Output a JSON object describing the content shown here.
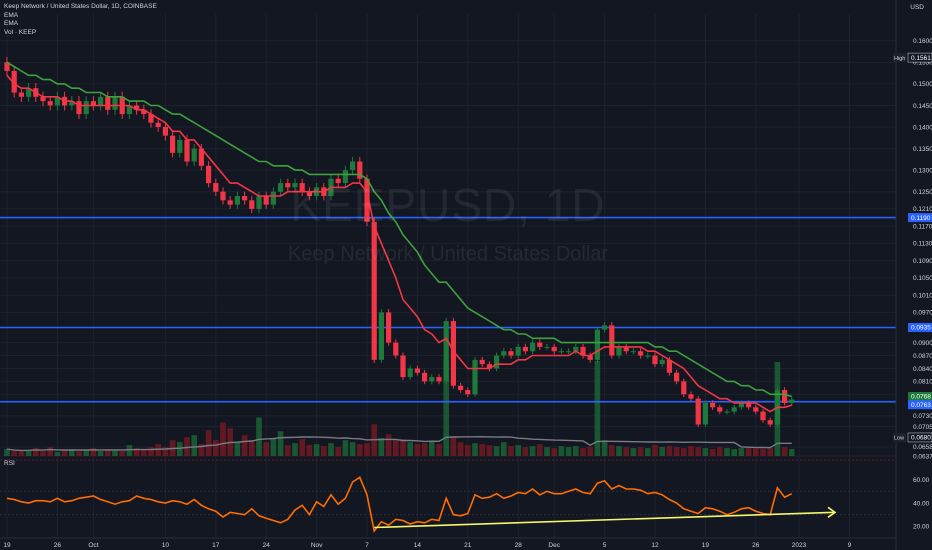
{
  "header": {
    "symbol_line": "Keep Network / United States Dollar, 1D, COINBASE",
    "indicators": [
      "EMA",
      "EMA",
      "Vol · KEEP"
    ],
    "currency": "USD"
  },
  "watermark": {
    "symbol": "KEEPUSD, 1D",
    "name": "Keep Network / United States Dollar"
  },
  "rsi_label": "RSI",
  "colors": {
    "background": "#131722",
    "up": "#26a69a",
    "up_candle": "#1e7a3a",
    "down": "#f23645",
    "ema_fast": "#f23645",
    "ema_slow": "#3ca33c",
    "hline": "#2962ff",
    "rsi": "#ff6d00",
    "trendline": "#f5f56b",
    "vol_ma": "#787b86"
  },
  "chart_data": {
    "type": "candlestick",
    "title": "Keep Network / United States Dollar, 1D, COINBASE",
    "price_axis": {
      "ylim": [
        0.0637,
        0.1625
      ],
      "ticks": [
        "0.1600",
        "0.1550",
        "0.1500",
        "0.1450",
        "0.1400",
        "0.1350",
        "0.1300",
        "0.1250",
        "0.1210",
        "0.1170",
        "0.1130",
        "0.1090",
        "0.1050",
        "0.1010",
        "0.0970",
        "0.0900",
        "0.0870",
        "0.0840",
        "0.0810",
        "0.0780",
        "0.0730",
        "0.0705",
        "0.0658",
        "0.0637"
      ],
      "tick_values": [
        0.16,
        0.155,
        0.15,
        0.145,
        0.14,
        0.135,
        0.13,
        0.125,
        0.121,
        0.117,
        0.113,
        0.109,
        0.105,
        0.101,
        0.097,
        0.09,
        0.087,
        0.084,
        0.081,
        0.078,
        0.073,
        0.0705,
        0.0658,
        0.0637
      ]
    },
    "x_axis": {
      "tick_labels": [
        "19",
        "26",
        "Oct",
        "10",
        "17",
        "24",
        "Nov",
        "7",
        "14",
        "21",
        "28",
        "Dec",
        "5",
        "12",
        "19",
        "26",
        "2023",
        "9"
      ],
      "tick_days": [
        0,
        7,
        12,
        22,
        29,
        36,
        43,
        50,
        57,
        64,
        71,
        76,
        83,
        90,
        97,
        104,
        110,
        117
      ]
    },
    "markers": [
      {
        "label": "High",
        "value": "0.1561"
      },
      {
        "label": "Low",
        "value": "0.0680"
      }
    ],
    "horizontal_lines": [
      0.119,
      0.0935,
      0.0763
    ],
    "price_labels": [
      {
        "value": "0.1190",
        "kind": "hline"
      },
      {
        "value": "0.0935",
        "kind": "hline"
      },
      {
        "value": "0.0768",
        "kind": "last"
      },
      {
        "value": "0.0763",
        "kind": "hline"
      }
    ],
    "closes": [
      0.153,
      0.148,
      0.147,
      0.149,
      0.147,
      0.146,
      0.145,
      0.147,
      0.145,
      0.146,
      0.143,
      0.146,
      0.145,
      0.147,
      0.144,
      0.147,
      0.143,
      0.145,
      0.144,
      0.143,
      0.141,
      0.14,
      0.138,
      0.134,
      0.137,
      0.132,
      0.135,
      0.131,
      0.127,
      0.125,
      0.123,
      0.122,
      0.124,
      0.123,
      0.121,
      0.124,
      0.122,
      0.125,
      0.127,
      0.126,
      0.127,
      0.125,
      0.124,
      0.126,
      0.124,
      0.128,
      0.127,
      0.13,
      0.132,
      0.128,
      0.118,
      0.086,
      0.097,
      0.09,
      0.087,
      0.082,
      0.084,
      0.083,
      0.081,
      0.082,
      0.081,
      0.095,
      0.08,
      0.079,
      0.078,
      0.086,
      0.085,
      0.084,
      0.087,
      0.088,
      0.087,
      0.089,
      0.088,
      0.09,
      0.089,
      0.089,
      0.088,
      0.088,
      0.088,
      0.089,
      0.087,
      0.086,
      0.093,
      0.094,
      0.087,
      0.089,
      0.088,
      0.088,
      0.087,
      0.087,
      0.085,
      0.086,
      0.083,
      0.081,
      0.078,
      0.077,
      0.071,
      0.076,
      0.075,
      0.074,
      0.074,
      0.075,
      0.076,
      0.075,
      0.074,
      0.072,
      0.071,
      0.079,
      0.076,
      0.0768
    ],
    "ema_fast": [
      0.152,
      0.15,
      0.149,
      0.149,
      0.148,
      0.147,
      0.147,
      0.147,
      0.146,
      0.146,
      0.145,
      0.145,
      0.145,
      0.145,
      0.145,
      0.145,
      0.145,
      0.145,
      0.144,
      0.144,
      0.143,
      0.142,
      0.141,
      0.139,
      0.139,
      0.137,
      0.137,
      0.135,
      0.133,
      0.131,
      0.129,
      0.127,
      0.127,
      0.126,
      0.125,
      0.124,
      0.124,
      0.124,
      0.124,
      0.125,
      0.125,
      0.125,
      0.125,
      0.125,
      0.125,
      0.126,
      0.126,
      0.126,
      0.127,
      0.127,
      0.125,
      0.117,
      0.113,
      0.109,
      0.105,
      0.1,
      0.098,
      0.096,
      0.093,
      0.092,
      0.09,
      0.091,
      0.088,
      0.086,
      0.084,
      0.084,
      0.084,
      0.084,
      0.085,
      0.085,
      0.085,
      0.086,
      0.086,
      0.087,
      0.087,
      0.087,
      0.087,
      0.087,
      0.087,
      0.088,
      0.087,
      0.087,
      0.088,
      0.089,
      0.089,
      0.089,
      0.089,
      0.089,
      0.089,
      0.088,
      0.088,
      0.087,
      0.086,
      0.085,
      0.084,
      0.082,
      0.08,
      0.079,
      0.078,
      0.077,
      0.077,
      0.076,
      0.076,
      0.076,
      0.076,
      0.075,
      0.074,
      0.075,
      0.075,
      0.0755
    ],
    "ema_slow": [
      0.155,
      0.154,
      0.153,
      0.152,
      0.152,
      0.151,
      0.151,
      0.15,
      0.15,
      0.149,
      0.149,
      0.148,
      0.148,
      0.148,
      0.147,
      0.147,
      0.147,
      0.146,
      0.146,
      0.146,
      0.145,
      0.145,
      0.144,
      0.143,
      0.143,
      0.142,
      0.141,
      0.14,
      0.139,
      0.138,
      0.137,
      0.136,
      0.135,
      0.134,
      0.133,
      0.132,
      0.132,
      0.131,
      0.131,
      0.131,
      0.13,
      0.13,
      0.129,
      0.129,
      0.129,
      0.129,
      0.129,
      0.129,
      0.129,
      0.129,
      0.128,
      0.125,
      0.123,
      0.12,
      0.118,
      0.115,
      0.113,
      0.111,
      0.108,
      0.106,
      0.104,
      0.104,
      0.102,
      0.1,
      0.098,
      0.097,
      0.096,
      0.095,
      0.094,
      0.093,
      0.093,
      0.092,
      0.092,
      0.091,
      0.091,
      0.091,
      0.091,
      0.09,
      0.09,
      0.09,
      0.09,
      0.09,
      0.09,
      0.09,
      0.09,
      0.09,
      0.09,
      0.09,
      0.09,
      0.09,
      0.089,
      0.089,
      0.088,
      0.088,
      0.087,
      0.086,
      0.085,
      0.084,
      0.083,
      0.082,
      0.081,
      0.081,
      0.08,
      0.08,
      0.079,
      0.079,
      0.078,
      0.078,
      0.078,
      0.0775
    ],
    "volume": [
      0.7,
      0.5,
      0.5,
      0.6,
      0.8,
      0.5,
      0.9,
      0.4,
      0.6,
      0.7,
      0.5,
      0.6,
      0.8,
      0.5,
      0.7,
      0.6,
      0.5,
      1.1,
      0.8,
      0.6,
      0.9,
      1.2,
      0.9,
      1.6,
      1.4,
      1.9,
      2.1,
      1.2,
      2.6,
      1.6,
      3.4,
      2.8,
      1.4,
      2.1,
      1.6,
      3.9,
      1.4,
      1.8,
      2.5,
      1.1,
      1.3,
      1.7,
      1.1,
      1.2,
      1.0,
      1.3,
      0.9,
      1.6,
      1.4,
      1.2,
      1.3,
      3.2,
      1.8,
      2.2,
      1.6,
      1.7,
      1.4,
      1.2,
      1.3,
      1.5,
      1.2,
      9.6,
      1.9,
      1.4,
      1.1,
      1.3,
      1.2,
      1.1,
      1.0,
      1.4,
      1.0,
      1.1,
      0.9,
      1.0,
      1.2,
      0.9,
      0.8,
      1.0,
      0.9,
      1.0,
      0.8,
      0.9,
      9.6,
      1.6,
      1.1,
      1.0,
      0.9,
      0.8,
      0.9,
      0.8,
      1.1,
      0.9,
      1.0,
      0.9,
      0.8,
      1.0,
      0.9,
      0.8,
      0.7,
      0.9,
      0.8,
      0.7,
      0.8,
      0.9,
      0.8,
      0.7,
      0.8,
      9.5,
      0.9,
      0.7
    ],
    "rsi": {
      "ylim": [
        10,
        70
      ],
      "ticks": [
        20,
        40,
        60
      ],
      "tick_labels": [
        "20.00",
        "40.00",
        "60.00"
      ],
      "levels": [
        30,
        50
      ],
      "values": [
        44,
        43,
        41,
        40,
        42,
        42,
        41,
        44,
        41,
        42,
        44,
        45,
        46,
        43,
        41,
        39,
        41,
        42,
        46,
        44,
        43,
        41,
        40,
        42,
        41,
        39,
        43,
        38,
        35,
        33,
        28,
        32,
        31,
        30,
        35,
        29,
        27,
        25,
        23,
        26,
        34,
        38,
        30,
        41,
        37,
        47,
        39,
        44,
        58,
        62,
        47,
        16,
        24,
        21,
        26,
        25,
        22,
        24,
        23,
        26,
        25,
        44,
        30,
        29,
        31,
        47,
        44,
        45,
        48,
        44,
        46,
        49,
        48,
        52,
        47,
        50,
        48,
        48,
        50,
        52,
        49,
        48,
        57,
        59,
        52,
        55,
        52,
        52,
        51,
        48,
        49,
        47,
        43,
        40,
        35,
        33,
        31,
        36,
        35,
        33,
        30,
        32,
        35,
        36,
        33,
        31,
        30,
        53,
        45,
        48
      ],
      "trendline": {
        "from_day": 51,
        "to_day": 115,
        "from_value": 19,
        "to_value": 32
      }
    }
  }
}
